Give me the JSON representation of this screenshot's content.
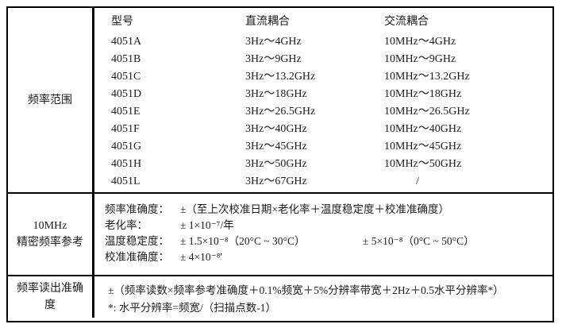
{
  "colors": {
    "border": "#000000",
    "text": "#1c1c1c",
    "background": "#ffffff"
  },
  "frequency_range_section": {
    "row_header": "频率范围",
    "columns": [
      "型号",
      "直流耦合",
      "交流耦合"
    ],
    "models": [
      {
        "model": "4051A",
        "dc": "3Hz～4GHz",
        "ac": "10MHz～4GHz"
      },
      {
        "model": "4051B",
        "dc": "3Hz～9GHz",
        "ac": "10MHz～9GHz"
      },
      {
        "model": "4051C",
        "dc": "3Hz～13.2GHz",
        "ac": "10MHz～13.2GHz"
      },
      {
        "model": "4051D",
        "dc": "3Hz～18GHz",
        "ac": "10MHz～18GHz"
      },
      {
        "model": "4051E",
        "dc": "3Hz～26.5GHz",
        "ac": "10MHz～26.5GHz"
      },
      {
        "model": "4051F",
        "dc": "3Hz～40GHz",
        "ac": "10MHz～40GHz"
      },
      {
        "model": "4051G",
        "dc": "3Hz～45GHz",
        "ac": "10MHz～45GHz"
      },
      {
        "model": "4051H",
        "dc": "3Hz～50GHz",
        "ac": "10MHz～50GHz"
      },
      {
        "model": "4051L",
        "dc": "3Hz～67GHz",
        "ac": "/"
      }
    ]
  },
  "reference_section": {
    "row_header_line1": "10MHz",
    "row_header_line2": "精密频率参考",
    "rows": [
      {
        "label": "频率准确度：",
        "value": "±（至上次校准日期×老化率＋温度稳定度＋校准准确度）",
        "value2": ""
      },
      {
        "label": "老化率：",
        "value": "± 1×10⁻⁷/年",
        "value2": ""
      },
      {
        "label": "温度稳定度：",
        "value": "± 1.5×10⁻⁸（20°C ~ 30°C）",
        "value2": "± 5×10⁻⁸（0°C ~ 50°C）"
      },
      {
        "label": "校准准确度：",
        "value": "± 4×10⁻⁸'",
        "value2": ""
      }
    ]
  },
  "readout_section": {
    "row_header_line1": "频率读出准确",
    "row_header_line2": "度",
    "line1": "±（频率读数×频率参考准确度＋0.1%频宽＋5%分辨率带宽＋2Hz＋0.5水平分辨率*）",
    "line2": "*: 水平分辨率=频宽/（扫描点数-1）"
  }
}
